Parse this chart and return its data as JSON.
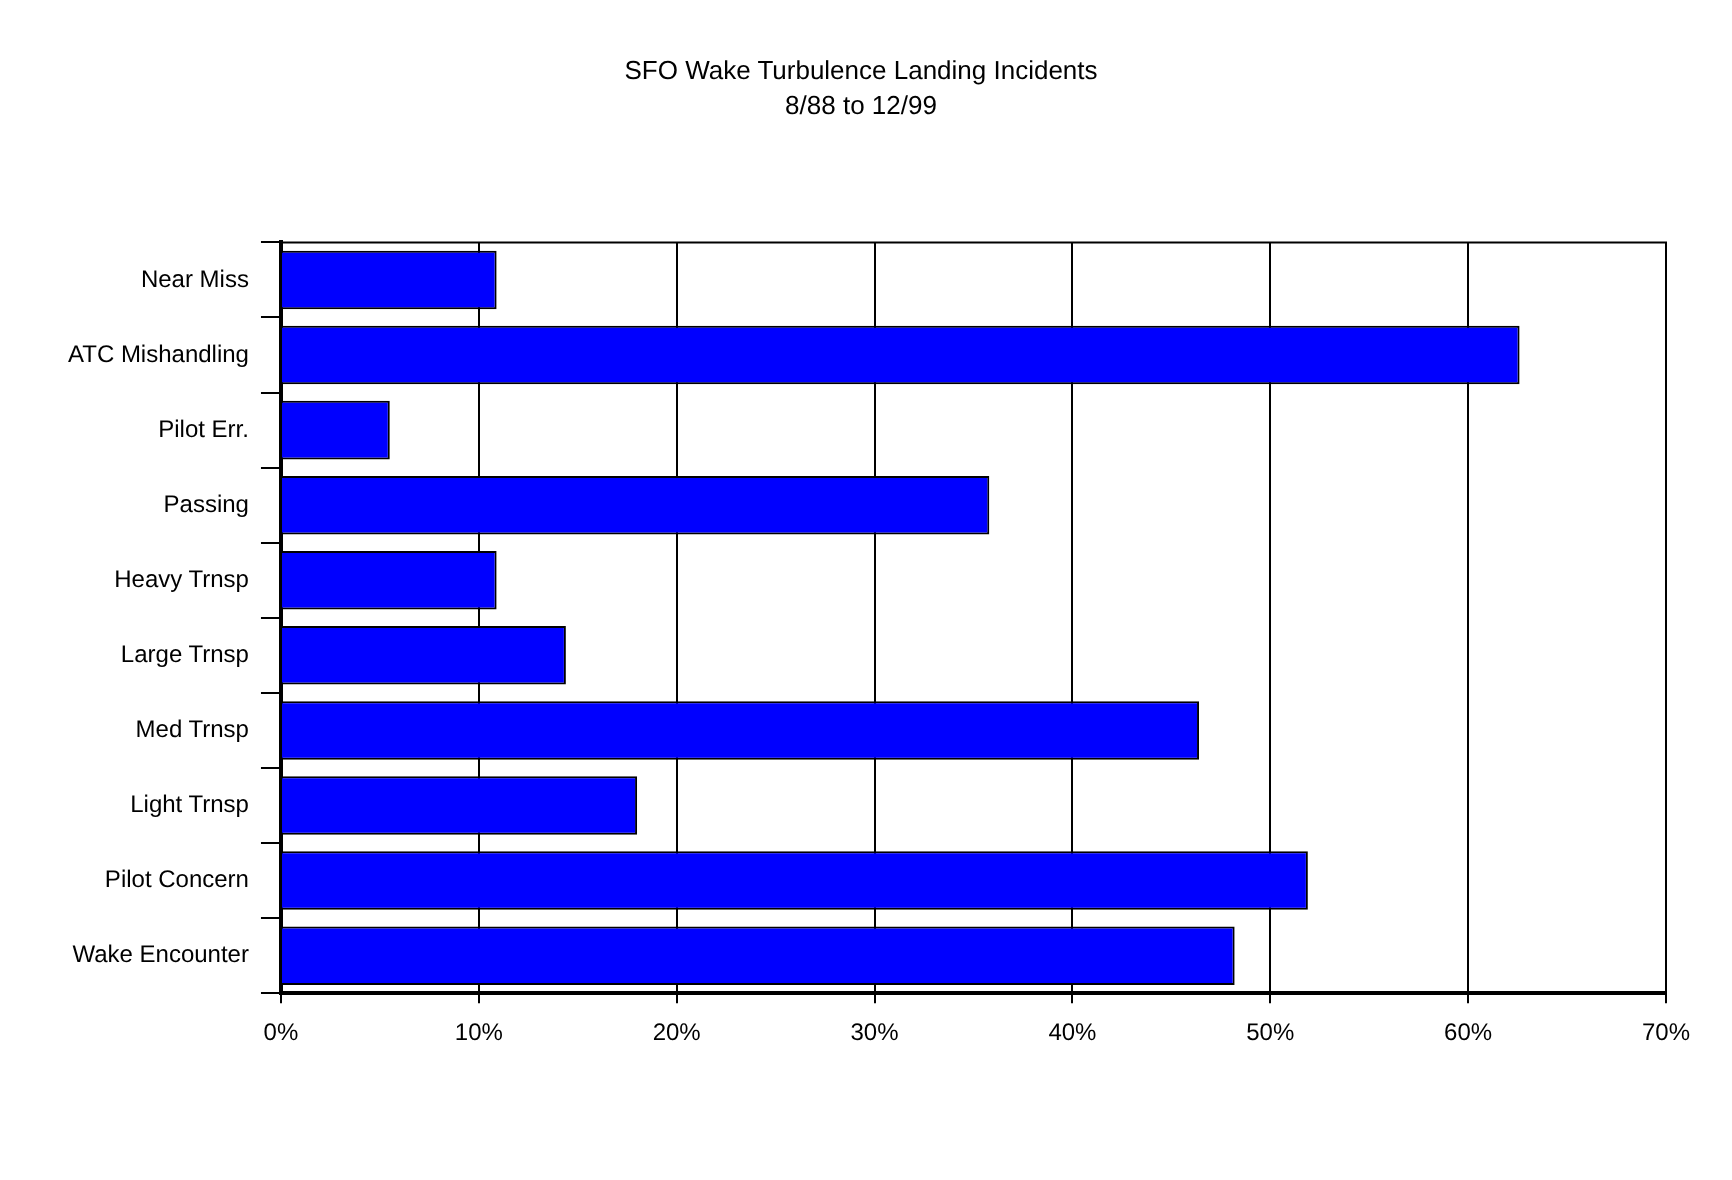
{
  "chart_data": {
    "type": "bar",
    "orientation": "horizontal",
    "title": "SFO Wake Turbulence Landing Incidents",
    "subtitle": "8/88 to 12/99",
    "categories": [
      "Near Miss",
      "ATC Mishandling",
      "Pilot Err.",
      "Passing",
      "Heavy Trnsp",
      "Large Trnsp",
      "Med Trnsp",
      "Light Trnsp",
      "Pilot Concern",
      "Wake Encounter"
    ],
    "values": [
      10.9,
      62.6,
      5.5,
      35.8,
      10.9,
      14.4,
      46.4,
      18.0,
      51.9,
      48.2
    ],
    "color": "#0000ff",
    "xlim": [
      0,
      70
    ],
    "xticks": [
      {
        "value": 0,
        "label": "0%"
      },
      {
        "value": 10,
        "label": "10%"
      },
      {
        "value": 20,
        "label": "20%"
      },
      {
        "value": 30,
        "label": "30%"
      },
      {
        "value": 40,
        "label": "40%"
      },
      {
        "value": 50,
        "label": "50%"
      },
      {
        "value": 60,
        "label": "60%"
      },
      {
        "value": 70,
        "label": "70%"
      }
    ],
    "grid": "x",
    "legend": false
  }
}
